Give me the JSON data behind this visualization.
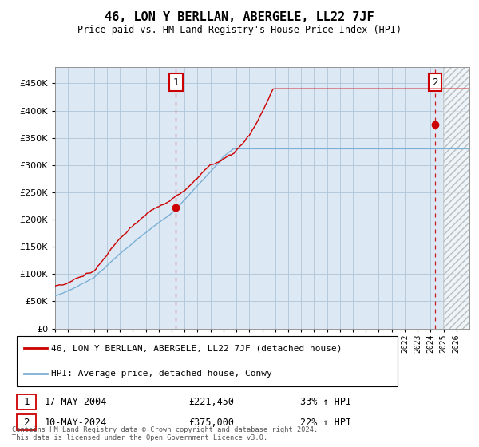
{
  "title": "46, LON Y BERLLAN, ABERGELE, LL22 7JF",
  "subtitle": "Price paid vs. HM Land Registry's House Price Index (HPI)",
  "legend_line1": "46, LON Y BERLLAN, ABERGELE, LL22 7JF (detached house)",
  "legend_line2": "HPI: Average price, detached house, Conwy",
  "annotation1_label": "1",
  "annotation1_date": "17-MAY-2004",
  "annotation1_price": 221450,
  "annotation1_hpi": "33% ↑ HPI",
  "annotation2_label": "2",
  "annotation2_date": "10-MAY-2024",
  "annotation2_price": 375000,
  "annotation2_hpi": "22% ↑ HPI",
  "footer": "Contains HM Land Registry data © Crown copyright and database right 2024.\nThis data is licensed under the Open Government Licence v3.0.",
  "hpi_color": "#7bafd4",
  "price_color": "#cc0000",
  "plot_bg_color": "#dce9f5",
  "ylim": [
    0,
    480000
  ],
  "yticks": [
    0,
    50000,
    100000,
    150000,
    200000,
    250000,
    300000,
    350000,
    400000,
    450000
  ],
  "background_color": "#ffffff",
  "grid_color": "#b0c4d8",
  "hatch_color": "#bbbbbb",
  "sale1_year": 2004,
  "sale1_month": 5,
  "sale2_year": 2024,
  "sale2_month": 5
}
